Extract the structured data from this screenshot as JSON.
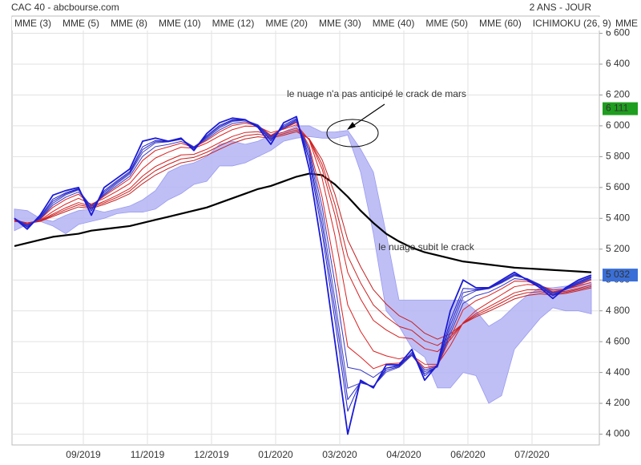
{
  "chart_data": {
    "type": "line",
    "title": "CAC 40 - abcbourse.com",
    "subtitle": "2 ANS - JOUR",
    "legend_overflow": "MME",
    "categories": [
      null,
      null,
      null,
      null,
      null,
      "09/2019",
      null,
      null,
      null,
      null,
      "11/2019",
      null,
      null,
      null,
      null,
      "12/2019",
      null,
      null,
      null,
      null,
      "01/2020",
      null,
      null,
      null,
      null,
      "03/2020",
      null,
      null,
      null,
      null,
      "04/2020",
      null,
      null,
      null,
      null,
      "06/2020",
      null,
      null,
      null,
      null,
      "07/2020",
      null,
      null,
      null,
      null,
      null
    ],
    "ylim": [
      3930,
      6660
    ],
    "yticks": [
      {
        "value": 4000,
        "label": "4 000"
      },
      {
        "value": 4200,
        "label": "4 200"
      },
      {
        "value": 4400,
        "label": "4 400"
      },
      {
        "value": 4600,
        "label": "4 600"
      },
      {
        "value": 4800,
        "label": "4 800"
      },
      {
        "value": 5000,
        "label": "5 000"
      },
      {
        "value": 5200,
        "label": "5 200"
      },
      {
        "value": 5400,
        "label": "5 400"
      },
      {
        "value": 5600,
        "label": "5 600"
      },
      {
        "value": 5800,
        "label": "5 800"
      },
      {
        "value": 6000,
        "label": "6 000"
      },
      {
        "value": 6200,
        "label": "6 200"
      },
      {
        "value": 6400,
        "label": "6 400"
      },
      {
        "value": 6600,
        "label": "6 600"
      }
    ],
    "grid": true,
    "cloud": {
      "name": "ICHIMOKU (26, 9)",
      "color": "#b4b4f5",
      "label_color": "#0000cc",
      "upper": [
        5460,
        5450,
        5400,
        5380,
        5420,
        5450,
        5460,
        5440,
        5460,
        5480,
        5520,
        5580,
        5700,
        5740,
        5760,
        5800,
        5880,
        5900,
        5880,
        5900,
        5940,
        5960,
        6000,
        6000,
        5960,
        5960,
        5970,
        5850,
        5700,
        5300,
        4870,
        4870,
        4870,
        4870,
        4870,
        4870,
        4800,
        4700,
        4750,
        4830,
        4900,
        4950,
        4950,
        4960,
        4970,
        4980
      ],
      "lower": [
        5320,
        5360,
        5380,
        5350,
        5300,
        5360,
        5380,
        5400,
        5430,
        5440,
        5440,
        5460,
        5520,
        5560,
        5620,
        5640,
        5740,
        5740,
        5760,
        5800,
        5840,
        5900,
        5920,
        5930,
        5920,
        5920,
        5940,
        5700,
        5300,
        4800,
        4700,
        4560,
        4500,
        4300,
        4300,
        4400,
        4380,
        4200,
        4250,
        4550,
        4650,
        4750,
        4820,
        4800,
        4800,
        4780
      ]
    },
    "extra_lines": [
      {
        "color": "#000000",
        "values": [
          5220,
          5240,
          5260,
          5280,
          5290,
          5300,
          5320,
          5330,
          5340,
          5350,
          5370,
          5390,
          5410,
          5430,
          5450,
          5470,
          5500,
          5530,
          5560,
          5590,
          5610,
          5640,
          5670,
          5690,
          5680,
          5620,
          5540,
          5450,
          5370,
          5300,
          5250,
          5210,
          5180,
          5160,
          5140,
          5120,
          5110,
          5100,
          5090,
          5080,
          5075,
          5070,
          5065,
          5060,
          5055,
          5050
        ]
      }
    ],
    "series": [
      {
        "name": "MME (3)",
        "color": "#1a1ad6",
        "values": [
          5400,
          5330,
          5420,
          5550,
          5580,
          5600,
          5420,
          5600,
          5660,
          5720,
          5900,
          5920,
          5900,
          5920,
          5840,
          5950,
          6020,
          6050,
          6040,
          5990,
          5880,
          6020,
          6060,
          5720,
          5200,
          4600,
          4000,
          4350,
          4300,
          4450,
          4450,
          4550,
          4350,
          4450,
          4800,
          5000,
          4950,
          4950,
          5000,
          5050,
          5000,
          4950,
          4880,
          4950,
          5000,
          5032
        ]
      },
      {
        "name": "MME (5)",
        "color": "#2020cc",
        "values": [
          5400,
          5342,
          5409,
          5524,
          5566,
          5592,
          5448,
          5579,
          5643,
          5704,
          5864,
          5905,
          5898,
          5916,
          5852,
          5936,
          6003,
          6039,
          6038,
          5998,
          5902,
          6004,
          6048,
          5774,
          5307,
          4738,
          4149,
          4341,
          4306,
          4427,
          4442,
          4531,
          4378,
          4443,
          4738,
          4945,
          4940,
          4947,
          4991,
          5039,
          5005,
          4960,
          4896,
          4944,
          4990,
          5023
        ]
      },
      {
        "name": "MME (8)",
        "color": "#2a2ac8",
        "values": [
          5400,
          5348,
          5404,
          5511,
          5559,
          5588,
          5462,
          5569,
          5634,
          5696,
          5846,
          5897,
          5897,
          5914,
          5858,
          5928,
          5995,
          6034,
          6037,
          6002,
          5912,
          5995,
          6041,
          5800,
          5360,
          4807,
          4224,
          4337,
          4308,
          4415,
          4438,
          4521,
          4391,
          4439,
          4707,
          4918,
          4935,
          4945,
          4986,
          5033,
          5007,
          4965,
          4903,
          4940,
          4984,
          5019
        ]
      },
      {
        "name": "MME (10)",
        "color": "#3535c4",
        "values": [
          5398,
          5358,
          5395,
          5485,
          5537,
          5571,
          5480,
          5551,
          5613,
          5673,
          5802,
          5865,
          5879,
          5899,
          5862,
          5913,
          5973,
          6015,
          6027,
          6003,
          5931,
          5985,
          6028,
          5847,
          5475,
          4979,
          4433,
          4416,
          4368,
          4429,
          4448,
          4511,
          4417,
          4440,
          4651,
          4848,
          4898,
          4921,
          4962,
          5009,
          5000,
          4969,
          4917,
          4938,
          4975,
          5007
        ]
      },
      {
        "name": "MME (12)",
        "color": "#4040c0",
        "values": [
          5400,
          5354,
          5398,
          5498,
          5552,
          5584,
          5476,
          5558,
          5625,
          5688,
          5828,
          5889,
          5896,
          5912,
          5864,
          5921,
          5986,
          6028,
          6036,
          6006,
          5923,
          5987,
          6035,
          5827,
          5413,
          4876,
          4298,
          4332,
          4311,
          4403,
          4434,
          4511,
          4405,
          4435,
          4676,
          4890,
          4930,
          4943,
          4981,
          5027,
          5009,
          4970,
          4911,
          4937,
          4979,
          5014
        ]
      },
      {
        "name": "MME (20)",
        "color": "#e02020",
        "values": [
          5395,
          5362,
          5393,
          5471,
          5522,
          5557,
          5484,
          5544,
          5601,
          5657,
          5775,
          5840,
          5863,
          5887,
          5859,
          5905,
          5960,
          6002,
          6017,
          6001,
          5939,
          5983,
          6021,
          5867,
          5537,
          5083,
          4568,
          4500,
          4425,
          4456,
          4461,
          4511,
          4430,
          4444,
          4625,
          4807,
          4866,
          4899,
          4943,
          4992,
          4990,
          4967,
          4923,
          4939,
          4970,
          5000
        ]
      },
      {
        "name": "MME (30)",
        "color": "#dc2020",
        "values": [
          5390,
          5369,
          5387,
          5444,
          5492,
          5530,
          5492,
          5530,
          5576,
          5626,
          5722,
          5791,
          5829,
          5861,
          5854,
          5888,
          5934,
          5975,
          5998,
          5995,
          5955,
          5978,
          6007,
          5907,
          5660,
          5289,
          4838,
          4667,
          4539,
          4508,
          4488,
          4510,
          4454,
          4453,
          4574,
          4723,
          4802,
          4854,
          4905,
          4956,
          4971,
          4964,
          4935,
          4940,
          4961,
          4986
        ]
      },
      {
        "name": "MME (40)",
        "color": "#d42020",
        "values": [
          5385,
          5370,
          5384,
          5428,
          5468,
          5502,
          5478,
          5510,
          5549,
          5593,
          5674,
          5736,
          5776,
          5811,
          5815,
          5848,
          5891,
          5931,
          5957,
          5962,
          5938,
          5959,
          5985,
          5912,
          5720,
          5423,
          5049,
          4877,
          4738,
          4676,
          4629,
          4619,
          4555,
          4535,
          4613,
          4720,
          4782,
          4826,
          4871,
          4917,
          4936,
          4937,
          4920,
          4927,
          4946,
          4968
        ]
      },
      {
        "name": "MME (50)",
        "color": "#cc2020",
        "values": [
          5383,
          5370,
          5382,
          5420,
          5456,
          5488,
          5471,
          5500,
          5536,
          5577,
          5649,
          5709,
          5750,
          5785,
          5795,
          5828,
          5870,
          5908,
          5936,
          5946,
          5929,
          5949,
          5973,
          5914,
          5750,
          5489,
          5155,
          4982,
          4838,
          4760,
          4699,
          4673,
          4605,
          4575,
          4632,
          4719,
          4771,
          4811,
          4853,
          4897,
          4918,
          4924,
          4912,
          4920,
          4938,
          4958
        ]
      },
      {
        "name": "MME (60)",
        "color": "#c42020",
        "values": [
          5380,
          5370,
          5380,
          5412,
          5444,
          5474,
          5464,
          5490,
          5522,
          5560,
          5625,
          5681,
          5723,
          5760,
          5775,
          5808,
          5848,
          5886,
          5915,
          5929,
          5920,
          5939,
          5962,
          5916,
          5780,
          5556,
          5260,
          5087,
          4937,
          4844,
          4769,
          4727,
          4655,
          4616,
          4651,
          4717,
          4761,
          4797,
          4836,
          4877,
          4900,
          4910,
          4904,
          4913,
          4930,
          4949
        ]
      }
    ],
    "markers": [
      {
        "value": 6111,
        "label": "6 111",
        "color": "#1e9e1e"
      },
      {
        "value": 5032,
        "label": "5 032",
        "color": "#3a6fd8"
      }
    ],
    "annotations": [
      {
        "text": "le nuage n'a pas anticipé le crack de mars"
      },
      {
        "text": "le nuage subit le crack"
      }
    ]
  }
}
